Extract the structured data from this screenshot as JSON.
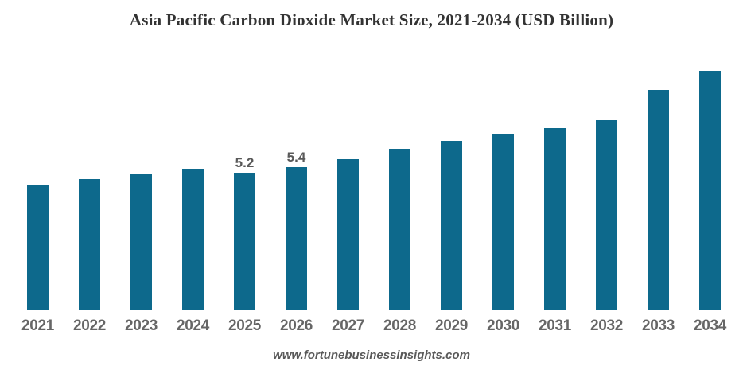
{
  "source_text": "www.fortunebusinessinsights.com",
  "colors": {
    "bar": "#0d698c",
    "title_text": "#333333",
    "year_label_text": "#666666",
    "data_label_text": "#595959",
    "background": "#ffffff"
  },
  "chart_data": {
    "type": "bar",
    "title": "Asia Pacific Carbon Dioxide Market Size, 2021-2034 (USD Billion)",
    "unit": "USD Billion",
    "categories": [
      "2021",
      "2022",
      "2023",
      "2024",
      "2025",
      "2026",
      "2027",
      "2028",
      "2029",
      "2030",
      "2031",
      "2032",
      "2033",
      "2034"
    ],
    "values": [
      4.74,
      4.95,
      5.13,
      5.35,
      5.2,
      5.4,
      5.7,
      6.1,
      6.4,
      6.65,
      6.9,
      7.2,
      8.33,
      9.06
    ],
    "data_labels": [
      "",
      "",
      "",
      "",
      "5.2",
      "5.4",
      "",
      "",
      "",
      "",
      "",
      "",
      "",
      ""
    ],
    "xlabel": "",
    "ylabel": "",
    "ylim": [
      0,
      10
    ],
    "grid": false,
    "legend": false,
    "axis_lines": false
  }
}
